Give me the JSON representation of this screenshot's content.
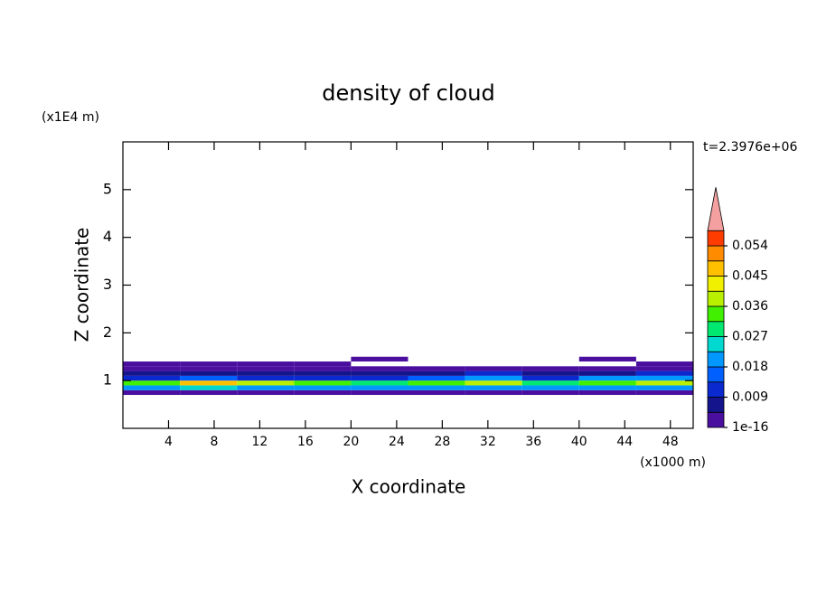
{
  "chart_data": {
    "type": "contour",
    "title": "density of cloud",
    "x_label": "X coordinate",
    "y_label": "Z coordinate",
    "x_unit": "(x1000 m)",
    "y_unit": "(x1E4 m)",
    "time_label": "t=2.3976e+06",
    "xlim": [
      0,
      50
    ],
    "ylim": [
      0,
      6
    ],
    "xticks": [
      4,
      8,
      12,
      16,
      20,
      24,
      28,
      32,
      36,
      40,
      44,
      48
    ],
    "yticks": [
      1,
      2,
      3,
      4,
      5
    ],
    "x": [
      2.5,
      7.5,
      12.5,
      17.5,
      22.5,
      27.5,
      32.5,
      37.5,
      42.5,
      47.5
    ],
    "z": [
      0.75,
      0.85,
      0.95,
      1.05,
      1.15,
      1.25,
      1.35,
      1.45
    ],
    "values": [
      [
        0.002,
        0.002,
        0.002,
        0.002,
        0.002,
        0.002,
        0.002,
        0.002,
        0.002,
        0.002
      ],
      [
        0.02,
        0.025,
        0.022,
        0.02,
        0.018,
        0.02,
        0.022,
        0.02,
        0.02,
        0.022
      ],
      [
        0.035,
        0.045,
        0.04,
        0.035,
        0.03,
        0.032,
        0.04,
        0.03,
        0.035,
        0.04
      ],
      [
        0.012,
        0.015,
        0.012,
        0.01,
        0.012,
        0.015,
        0.018,
        0.012,
        0.02,
        0.02
      ],
      [
        0.005,
        0.006,
        0.005,
        0.005,
        0.006,
        0.008,
        0.01,
        0.006,
        0.008,
        0.01
      ],
      [
        0.003,
        0.003,
        0.003,
        0.003,
        0.002,
        0.004,
        0.004,
        0.003,
        0.003,
        0.003
      ],
      [
        0.001,
        0.001,
        0.001,
        0.001,
        null,
        null,
        null,
        null,
        null,
        0.001
      ],
      [
        null,
        null,
        null,
        null,
        0.001,
        null,
        null,
        null,
        0.001,
        null
      ]
    ],
    "levels": [
      1e-16,
      0.0045,
      0.009,
      0.0135,
      0.018,
      0.0225,
      0.027,
      0.0315,
      0.036,
      0.0405,
      0.045,
      0.0495,
      0.054,
      0.0585
    ],
    "colors": [
      "#4b0fa0",
      "#14148c",
      "#0a2ad0",
      "#0060ff",
      "#0098ff",
      "#00d8d0",
      "#00e870",
      "#40f000",
      "#b8f000",
      "#f0f000",
      "#ffc000",
      "#ff8c00",
      "#ff3c00"
    ],
    "extend_color": "#f4a0a0",
    "colorbar_ticks": [
      1e-16,
      0.009,
      0.018,
      0.027,
      0.036,
      0.045,
      0.054
    ]
  }
}
